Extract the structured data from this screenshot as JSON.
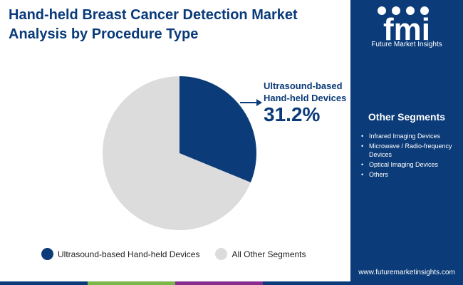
{
  "title": "Hand-held Breast Cancer Detection Market Analysis by Procedure Type",
  "brand": {
    "logo_letters": "fmi",
    "name": "Future Market Insights",
    "website": "www.futuremarketinsights.com",
    "sidebar_color": "#0b3b78"
  },
  "other_segments": {
    "title": "Other Segments",
    "items": [
      "Infrared Imaging Devices",
      "Microwave / Radio-frequency Devices",
      "Optical Imaging Devices",
      "Others"
    ]
  },
  "chart_data": {
    "type": "pie",
    "title": "Hand-held Breast Cancer Detection Market Analysis by Procedure Type",
    "slices": [
      {
        "label": "Ultrasound-based Hand-held Devices",
        "value": 31.2,
        "color": "#0b3b78"
      },
      {
        "label": "All Other Segments",
        "value": 68.8,
        "color": "#dcdcdc"
      }
    ],
    "callout": {
      "label": "Ultrasound-based\nHand-held Devices",
      "value_text": "31.2%"
    },
    "legend": {
      "placement": "bottom"
    }
  },
  "footer_colors": [
    "#0b3b78",
    "#7ab648",
    "#8a2b8f",
    "#0b3b78"
  ]
}
